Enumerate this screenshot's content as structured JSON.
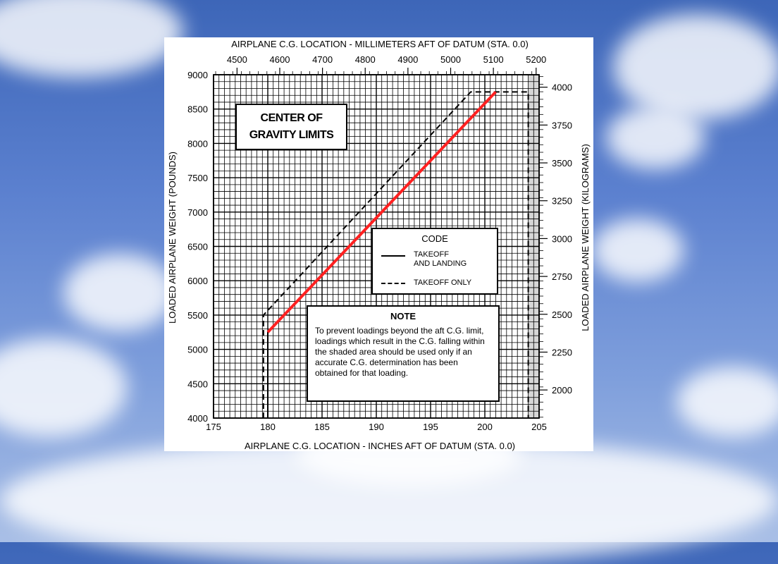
{
  "chart_data": {
    "type": "line",
    "title": "CENTER OF\nGRAVITY LIMITS",
    "xlabel": "AIRPLANE C.G. LOCATION - INCHES AFT OF DATUM (STA. 0.0)",
    "x2label": "AIRPLANE C.G. LOCATION - MILLIMETERS AFT OF DATUM (STA. 0.0)",
    "ylabel": "LOADED AIRPLANE WEIGHT (POUNDS)",
    "y2label": "LOADED AIRPLANE WEIGHT (KILOGRAMS)",
    "xlim": [
      175,
      205
    ],
    "ylim": [
      4000,
      9000
    ],
    "x_ticks": [
      "175",
      "180",
      "185",
      "190",
      "195",
      "200",
      "205"
    ],
    "y_ticks": [
      "4000",
      "4500",
      "5000",
      "5500",
      "6000",
      "6500",
      "7000",
      "7500",
      "8000",
      "8500",
      "9000"
    ],
    "x2_ticks": [
      "4500",
      "4600",
      "4700",
      "4800",
      "4900",
      "5000",
      "5100",
      "5200"
    ],
    "y2_ticks": [
      "2000",
      "2250",
      "2500",
      "2750",
      "3000",
      "3250",
      "3500",
      "3750",
      "4000"
    ],
    "grid": true,
    "shaded_x_range": [
      204,
      205
    ],
    "series": [
      {
        "name": "TAKEOFF AND LANDING",
        "style": "solid",
        "color": "#000000",
        "x": [
          180.0,
          180.0,
          201.0
        ],
        "y": [
          4000,
          5250,
          8750
        ]
      },
      {
        "name": "TAKEOFF ONLY",
        "style": "dashed",
        "color": "#000000",
        "x": [
          179.6,
          179.6,
          198.7,
          204.0,
          204.0
        ],
        "y": [
          4000,
          5500,
          8750,
          8750,
          4000
        ]
      },
      {
        "name": "",
        "style": "solid",
        "color": "#ff2020",
        "x": [
          180.0,
          201.0
        ],
        "y": [
          5250,
          8750
        ]
      }
    ],
    "legend": {
      "title": "CODE",
      "entries": [
        {
          "label": "TAKEOFF\nAND LANDING",
          "style": "solid"
        },
        {
          "label": "TAKEOFF ONLY",
          "style": "dashed"
        }
      ]
    },
    "note": {
      "title": "NOTE",
      "text": "To prevent loadings beyond the aft C.G. limit, loadings which result in the C.G. falling within the shaded area should be used only if an accurate C.G. determination has been obtained for that loading."
    }
  }
}
